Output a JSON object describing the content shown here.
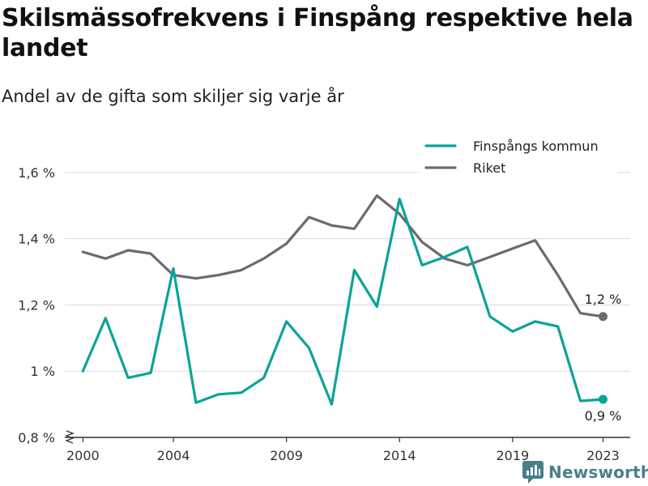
{
  "title": "Skilsmässofrekvens i Finspång respektive hela landet",
  "subtitle": "Andel av de gifta som skiljer sig varje år",
  "brand": {
    "name": "Newsworthy"
  },
  "colors": {
    "finspang": "#0ba39a",
    "riket": "#6a6b70",
    "grid": "#d9d9d9",
    "axis": "#333333"
  },
  "chart_data": {
    "type": "line",
    "x": [
      2000,
      2001,
      2002,
      2003,
      2004,
      2005,
      2006,
      2007,
      2008,
      2009,
      2010,
      2011,
      2012,
      2013,
      2014,
      2015,
      2016,
      2017,
      2018,
      2019,
      2020,
      2021,
      2022,
      2023
    ],
    "x_ticks": [
      2000,
      2004,
      2009,
      2014,
      2019,
      2023
    ],
    "x_tick_labels": [
      "2000",
      "2004",
      "2009",
      "2014",
      "2019",
      "2023"
    ],
    "xlim": [
      1999.2,
      2024.2
    ],
    "ylim": [
      0.8,
      1.7
    ],
    "y_ticks": [
      0.8,
      1.0,
      1.2,
      1.4,
      1.6
    ],
    "y_tick_labels": [
      "0,8 %",
      "1 %",
      "1,2 %",
      "1,4 %",
      "1,6 %"
    ],
    "axis_break": true,
    "grid": true,
    "legend_position": "top-right",
    "series": [
      {
        "name": "Finspångs kommun",
        "color": "#0ba39a",
        "values": [
          1.0,
          1.16,
          0.98,
          0.995,
          1.31,
          0.905,
          0.93,
          0.935,
          0.98,
          1.15,
          1.07,
          0.9,
          1.305,
          1.195,
          1.52,
          1.32,
          1.345,
          1.375,
          1.165,
          1.12,
          1.15,
          1.135,
          0.91,
          0.915
        ],
        "end_label": "0,9 %"
      },
      {
        "name": "Riket",
        "color": "#6a6b70",
        "values": [
          1.36,
          1.34,
          1.365,
          1.355,
          1.29,
          1.28,
          1.29,
          1.305,
          1.34,
          1.385,
          1.465,
          1.44,
          1.43,
          1.53,
          1.475,
          1.39,
          1.34,
          1.32,
          1.345,
          1.37,
          1.395,
          1.29,
          1.175,
          1.165
        ],
        "end_label": "1,2 %"
      }
    ]
  }
}
